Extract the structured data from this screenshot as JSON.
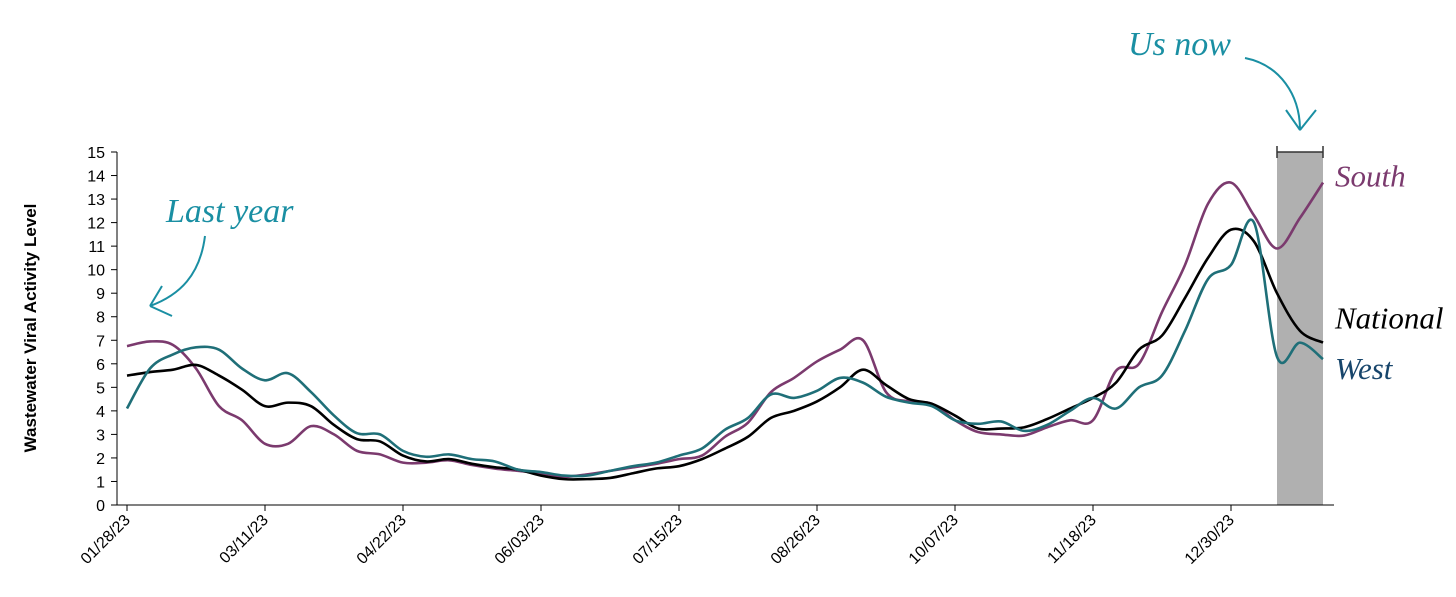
{
  "chart_data": {
    "type": "line",
    "y_label": "Wastewater Viral Activity Level",
    "categories": [
      "01/28/23",
      null,
      null,
      null,
      null,
      null,
      "03/11/23",
      null,
      null,
      null,
      null,
      null,
      "04/22/23",
      null,
      null,
      null,
      null,
      null,
      "06/03/23",
      null,
      null,
      null,
      null,
      null,
      "07/15/23",
      null,
      null,
      null,
      null,
      null,
      "08/26/23",
      null,
      null,
      null,
      null,
      null,
      "10/07/23",
      null,
      null,
      null,
      null,
      null,
      "11/18/23",
      null,
      null,
      null,
      null,
      null,
      "12/30/23",
      null,
      null,
      null,
      null
    ],
    "series": [
      {
        "name": "South",
        "color": "#7b3a6e",
        "values": [
          6.75,
          6.95,
          6.8,
          5.8,
          4.2,
          3.6,
          2.6,
          2.6,
          3.35,
          3.0,
          2.3,
          2.15,
          1.8,
          1.8,
          1.9,
          1.7,
          1.55,
          1.45,
          1.35,
          1.2,
          1.3,
          1.45,
          1.6,
          1.75,
          1.95,
          2.1,
          2.9,
          3.5,
          4.8,
          5.4,
          6.1,
          6.6,
          7.0,
          4.8,
          4.4,
          4.3,
          3.6,
          3.1,
          3.0,
          2.95,
          3.3,
          3.6,
          3.6,
          5.7,
          6.0,
          8.2,
          10.2,
          12.8,
          13.7,
          12.3,
          10.9,
          12.2,
          13.7
        ]
      },
      {
        "name": "National",
        "color": "#000000",
        "values": [
          5.5,
          5.65,
          5.75,
          5.95,
          5.5,
          4.9,
          4.2,
          4.35,
          4.2,
          3.4,
          2.8,
          2.7,
          2.1,
          1.85,
          1.95,
          1.75,
          1.6,
          1.5,
          1.25,
          1.1,
          1.1,
          1.15,
          1.35,
          1.55,
          1.65,
          1.95,
          2.4,
          2.9,
          3.7,
          4.0,
          4.4,
          5.0,
          5.75,
          5.1,
          4.5,
          4.3,
          3.8,
          3.25,
          3.25,
          3.3,
          3.65,
          4.1,
          4.55,
          5.2,
          6.6,
          7.2,
          8.8,
          10.5,
          11.7,
          11.2,
          9.0,
          7.4,
          6.9
        ]
      },
      {
        "name": "West",
        "color": "#1f6f78",
        "values": [
          4.1,
          5.8,
          6.4,
          6.7,
          6.6,
          5.8,
          5.3,
          5.6,
          4.8,
          3.8,
          3.05,
          3.0,
          2.3,
          2.05,
          2.15,
          1.95,
          1.85,
          1.5,
          1.4,
          1.25,
          1.25,
          1.45,
          1.65,
          1.8,
          2.1,
          2.4,
          3.2,
          3.7,
          4.7,
          4.55,
          4.85,
          5.4,
          5.2,
          4.6,
          4.35,
          4.2,
          3.6,
          3.45,
          3.55,
          3.15,
          3.4,
          4.0,
          4.55,
          4.1,
          5.0,
          5.5,
          7.4,
          9.6,
          10.2,
          12.0,
          6.3,
          6.9,
          6.2
        ]
      }
    ],
    "ylim": [
      0,
      15
    ],
    "yticks": [
      0,
      1,
      2,
      3,
      4,
      5,
      6,
      7,
      8,
      9,
      10,
      11,
      12,
      13,
      14,
      15
    ],
    "highlight": {
      "from": 50,
      "to": 52,
      "color": "#b0b0b0"
    },
    "annotations": [
      "Last year",
      "Us now"
    ]
  }
}
